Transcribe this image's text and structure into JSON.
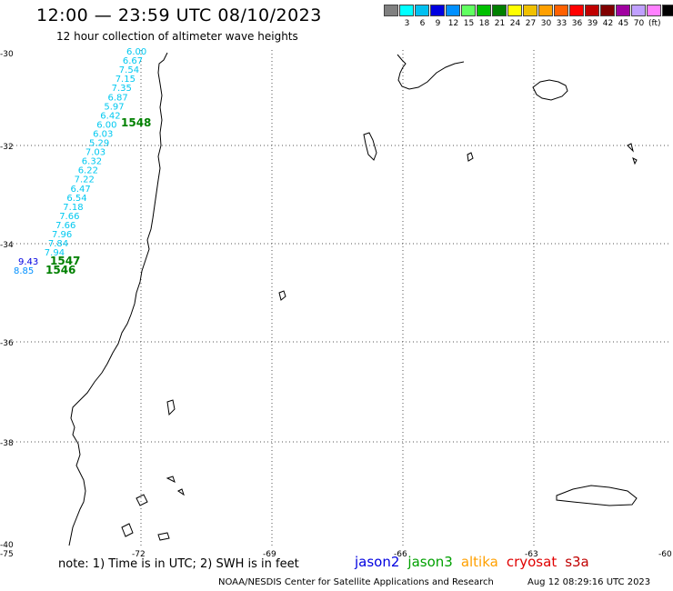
{
  "header": {
    "title": "12:00 — 23:59 UTC 08/10/2023",
    "subtitle": "12 hour collection of altimeter wave heights"
  },
  "legend": {
    "colors": [
      "#808080",
      "#00ffff",
      "#00c0f0",
      "#0000e0",
      "#0090ff",
      "#60ff60",
      "#00c000",
      "#008000",
      "#ffff00",
      "#f0c000",
      "#ffa000",
      "#ff6000",
      "#ff0000",
      "#c00000",
      "#800000",
      "#a000a0",
      "#c0a0ff",
      "#ff80ff",
      "#000000"
    ],
    "labels": [
      "",
      "3",
      "6",
      "9",
      "12",
      "15",
      "18",
      "21",
      "24",
      "27",
      "30",
      "33",
      "36",
      "39",
      "42",
      "45",
      "70"
    ],
    "unit": "(ft)"
  },
  "axes": {
    "lat_labels": [
      "-30",
      "-32",
      "-34",
      "-36",
      "-38",
      "-40"
    ],
    "lon_labels": [
      "-75",
      "-72",
      "-69",
      "-66",
      "-63",
      "-60"
    ]
  },
  "track": {
    "values": [
      {
        "v": "6.00",
        "c": "#00c8f0"
      },
      {
        "v": "6.67",
        "c": "#00c8f0"
      },
      {
        "v": "7.54",
        "c": "#00c8f0"
      },
      {
        "v": "7.15",
        "c": "#00c8f0"
      },
      {
        "v": "7.35",
        "c": "#00c8f0"
      },
      {
        "v": "6.87",
        "c": "#00c8f0"
      },
      {
        "v": "5.97",
        "c": "#00c8f0"
      },
      {
        "v": "6.42",
        "c": "#00c8f0"
      },
      {
        "v": "6.00",
        "c": "#00c8f0"
      },
      {
        "v": "6.03",
        "c": "#00c8f0"
      },
      {
        "v": "5.29",
        "c": "#00c8f0"
      },
      {
        "v": "7.03",
        "c": "#00c8f0"
      },
      {
        "v": "6.32",
        "c": "#00c8f0"
      },
      {
        "v": "6.22",
        "c": "#00c8f0"
      },
      {
        "v": "7.22",
        "c": "#00c8f0"
      },
      {
        "v": "6.47",
        "c": "#00c8f0"
      },
      {
        "v": "6.54",
        "c": "#00c8f0"
      },
      {
        "v": "7.18",
        "c": "#00c8f0"
      },
      {
        "v": "7.66",
        "c": "#00c8f0"
      },
      {
        "v": "7.66",
        "c": "#00c8f0"
      },
      {
        "v": "7.96",
        "c": "#00c8f0"
      },
      {
        "v": "7.84",
        "c": "#00c8f0"
      },
      {
        "v": "7.94",
        "c": "#00c8f0"
      },
      {
        "v": "9.43",
        "c": "#0000e0"
      },
      {
        "v": "8.85",
        "c": "#0090ff"
      }
    ],
    "time_labels": [
      {
        "t": "1548",
        "c": "#008000"
      },
      {
        "t": "1547",
        "c": "#008000"
      },
      {
        "t": "1546",
        "c": "#008000"
      }
    ]
  },
  "footer": {
    "note": "note: 1) Time is in UTC; 2) SWH is in feet",
    "satellites": [
      {
        "name": "jason2",
        "color": "#0000e0"
      },
      {
        "name": "jason3",
        "color": "#00a000"
      },
      {
        "name": "altika",
        "color": "#ffa000"
      },
      {
        "name": "cryosat",
        "color": "#e00000"
      },
      {
        "name": "s3a",
        "color": "#c00000"
      }
    ],
    "credit": "NOAA/NESDIS Center for Satellite Applications and Research",
    "timestamp": "Aug 12 08:29:16 UTC 2023"
  }
}
